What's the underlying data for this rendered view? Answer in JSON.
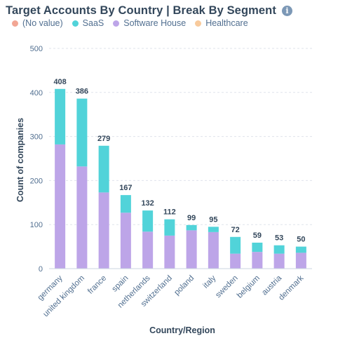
{
  "header": {
    "title": "Target Accounts By Country | Break By Segment",
    "info_icon": "info-icon"
  },
  "colors": {
    "no_value": "#f2a694",
    "saas": "#51d3d9",
    "software_house": "#bda5e8",
    "healthcare": "#f8ca9c"
  },
  "chart_data": {
    "type": "bar",
    "stacked": true,
    "title": "Target Accounts By Country | Break By Segment",
    "xlabel": "Country/Region",
    "ylabel": "Count of companies",
    "ylim": [
      0,
      500
    ],
    "yticks": [
      0,
      100,
      200,
      300,
      400,
      500
    ],
    "grid": true,
    "legend_position": "top-left",
    "categories": [
      "germany",
      "united kingdom",
      "france",
      "spain",
      "netherlands",
      "switzerland",
      "poland",
      "italy",
      "sweden",
      "belgium",
      "austria",
      "denmark"
    ],
    "totals": [
      408,
      386,
      279,
      167,
      132,
      112,
      99,
      95,
      72,
      59,
      53,
      50
    ],
    "series": [
      {
        "name": "(No value)",
        "color": "#f2a694",
        "values": [
          0,
          0,
          0,
          0,
          0,
          0,
          0,
          0,
          0,
          0,
          0,
          0
        ]
      },
      {
        "name": "SaaS",
        "color": "#51d3d9",
        "values": [
          126,
          154,
          106,
          40,
          48,
          37,
          12,
          12,
          38,
          21,
          19,
          14
        ]
      },
      {
        "name": "Software House",
        "color": "#bda5e8",
        "values": [
          282,
          232,
          173,
          127,
          84,
          75,
          87,
          83,
          34,
          38,
          34,
          36
        ]
      },
      {
        "name": "Healthcare",
        "color": "#f8ca9c",
        "values": [
          0,
          0,
          0,
          0,
          0,
          0,
          0,
          0,
          0,
          0,
          0,
          0
        ]
      }
    ]
  }
}
